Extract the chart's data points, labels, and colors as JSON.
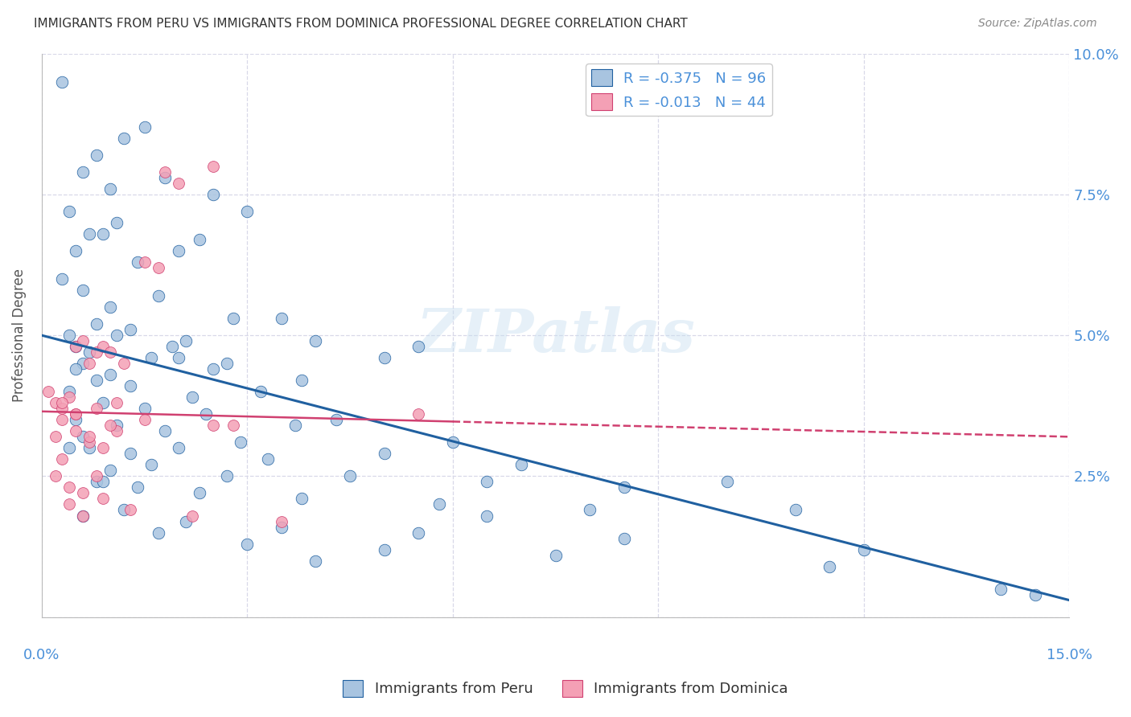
{
  "title": "IMMIGRANTS FROM PERU VS IMMIGRANTS FROM DOMINICA PROFESSIONAL DEGREE CORRELATION CHART",
  "source": "Source: ZipAtlas.com",
  "legend_peru": "Immigrants from Peru",
  "legend_dominica": "Immigrants from Dominica",
  "r_peru": -0.375,
  "n_peru": 96,
  "r_dominica": -0.013,
  "n_dominica": 44,
  "xlim": [
    0.0,
    15.0
  ],
  "ylim": [
    0.0,
    10.0
  ],
  "color_peru": "#a8c4e0",
  "color_peru_line": "#2060a0",
  "color_dominica": "#f4a0b5",
  "color_dominica_line": "#d04070",
  "background": "#ffffff",
  "grid_color": "#d8d8e8",
  "ylabel": "Professional Degree",
  "peru_x": [
    0.3,
    1.5,
    0.6,
    0.8,
    1.0,
    1.2,
    1.8,
    2.5,
    0.4,
    0.7,
    1.1,
    2.0,
    3.0,
    0.5,
    0.9,
    1.4,
    2.3,
    0.3,
    0.6,
    1.0,
    1.7,
    2.8,
    0.4,
    0.8,
    1.3,
    2.1,
    3.5,
    0.5,
    0.7,
    1.1,
    1.9,
    2.7,
    4.0,
    0.6,
    1.0,
    1.6,
    2.5,
    3.8,
    0.4,
    0.8,
    1.3,
    2.2,
    3.2,
    5.0,
    0.5,
    0.9,
    1.5,
    2.4,
    3.7,
    5.5,
    0.6,
    1.1,
    1.8,
    2.9,
    4.3,
    6.0,
    0.7,
    1.3,
    2.0,
    3.3,
    5.0,
    7.0,
    0.5,
    1.0,
    1.6,
    2.7,
    4.5,
    6.5,
    8.5,
    0.8,
    1.4,
    2.3,
    3.8,
    5.8,
    8.0,
    11.0,
    0.6,
    1.2,
    2.1,
    3.5,
    5.5,
    8.5,
    12.0,
    0.9,
    1.7,
    3.0,
    5.0,
    7.5,
    11.5,
    14.0,
    2.0,
    4.0,
    6.5,
    10.0,
    14.5,
    0.4
  ],
  "peru_y": [
    9.5,
    8.7,
    7.9,
    8.2,
    7.6,
    8.5,
    7.8,
    7.5,
    7.2,
    6.8,
    7.0,
    6.5,
    7.2,
    6.5,
    6.8,
    6.3,
    6.7,
    6.0,
    5.8,
    5.5,
    5.7,
    5.3,
    5.0,
    5.2,
    5.1,
    4.9,
    5.3,
    4.8,
    4.7,
    5.0,
    4.8,
    4.5,
    4.9,
    4.5,
    4.3,
    4.6,
    4.4,
    4.2,
    4.0,
    4.2,
    4.1,
    3.9,
    4.0,
    4.6,
    3.5,
    3.8,
    3.7,
    3.6,
    3.4,
    4.8,
    3.2,
    3.4,
    3.3,
    3.1,
    3.5,
    3.1,
    3.0,
    2.9,
    3.0,
    2.8,
    2.9,
    2.7,
    4.4,
    2.6,
    2.7,
    2.5,
    2.5,
    2.4,
    2.3,
    2.4,
    2.3,
    2.2,
    2.1,
    2.0,
    1.9,
    1.9,
    1.8,
    1.9,
    1.7,
    1.6,
    1.5,
    1.4,
    1.2,
    2.4,
    1.5,
    1.3,
    1.2,
    1.1,
    0.9,
    0.5,
    4.6,
    1.0,
    1.8,
    2.4,
    0.4,
    3.0
  ],
  "dom_x": [
    0.1,
    0.2,
    0.3,
    0.4,
    0.5,
    0.6,
    0.7,
    0.8,
    0.9,
    1.0,
    0.2,
    0.3,
    0.5,
    0.7,
    0.9,
    1.1,
    1.5,
    2.0,
    0.2,
    0.4,
    0.6,
    0.8,
    1.2,
    1.8,
    2.5,
    0.3,
    0.5,
    0.8,
    1.1,
    1.7,
    2.8,
    0.4,
    0.6,
    0.9,
    1.3,
    2.2,
    3.5,
    5.5,
    0.3,
    0.5,
    0.7,
    1.0,
    1.5,
    2.5
  ],
  "dom_y": [
    4.0,
    3.8,
    3.7,
    3.9,
    4.8,
    4.9,
    4.5,
    4.7,
    4.8,
    4.7,
    3.2,
    2.8,
    3.3,
    3.1,
    3.0,
    3.3,
    6.3,
    7.7,
    2.5,
    2.3,
    2.2,
    2.5,
    4.5,
    7.9,
    8.0,
    3.5,
    3.6,
    3.7,
    3.8,
    6.2,
    3.4,
    2.0,
    1.8,
    2.1,
    1.9,
    1.8,
    1.7,
    3.6,
    3.8,
    3.6,
    3.2,
    3.4,
    3.5,
    3.4
  ]
}
